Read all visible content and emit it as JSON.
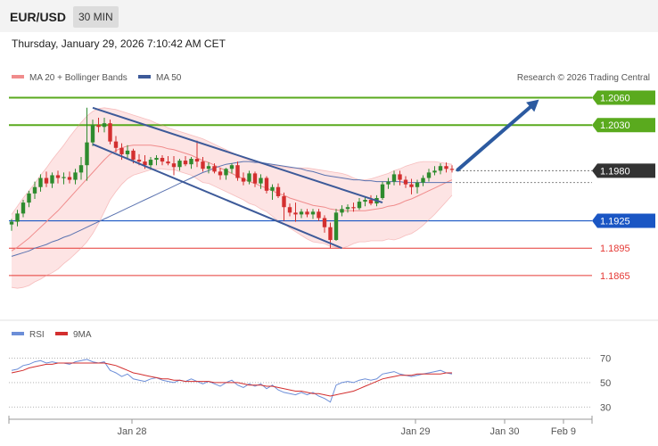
{
  "header": {
    "symbol": "EUR/USD",
    "timeframe": "30 MIN",
    "datetime": "Thursday, January 29, 2026 7:10:42 AM CET"
  },
  "legend": {
    "ma20_bb": "MA 20 + Bollinger Bands",
    "ma50": "MA 50",
    "credit": "Research © 2026 Trading Central",
    "rsi": "RSI",
    "rsi_ma": "9MA"
  },
  "colors": {
    "resistance": "#5aaa1e",
    "support": "#1a56c4",
    "target": "#e53935",
    "current": "#333333",
    "bull": "#2e8b2e",
    "bear": "#d32f2f",
    "channel": "#3d5a99",
    "arrow": "#2c5aa0",
    "rsi": "#6c8ed8",
    "rsi_ma": "#d32f2f"
  },
  "chart_data": [
    {
      "type": "candlestick",
      "ylim": [
        1.1815,
        1.2085
      ],
      "x_ticks": [
        "Jan 28",
        "Jan 29",
        "Jan 30",
        "Feb 9"
      ],
      "levels": [
        {
          "value": 1.206,
          "label": "1.2060",
          "kind": "resistance"
        },
        {
          "value": 1.203,
          "label": "1.2030",
          "kind": "resistance"
        },
        {
          "value": 1.198,
          "label": "1.1980",
          "kind": "current"
        },
        {
          "value": 1.1925,
          "label": "1.1925",
          "kind": "support"
        },
        {
          "value": 1.1895,
          "label": "1.1895",
          "kind": "target"
        },
        {
          "value": 1.1865,
          "label": "1.1865",
          "kind": "target"
        }
      ],
      "ohlc": [
        [
          1.1921,
          1.1927,
          1.1914,
          1.1924
        ],
        [
          1.1924,
          1.1937,
          1.1919,
          1.1933
        ],
        [
          1.1933,
          1.1948,
          1.1929,
          1.1945
        ],
        [
          1.1945,
          1.1958,
          1.194,
          1.1955
        ],
        [
          1.1955,
          1.1968,
          1.1949,
          1.1962
        ],
        [
          1.1962,
          1.1976,
          1.1957,
          1.1972
        ],
        [
          1.1972,
          1.1979,
          1.1962,
          1.1966
        ],
        [
          1.1966,
          1.1978,
          1.1961,
          1.1975
        ],
        [
          1.1975,
          1.198,
          1.1966,
          1.1972
        ],
        [
          1.1972,
          1.1978,
          1.1965,
          1.1973
        ],
        [
          1.1973,
          1.1979,
          1.1966,
          1.197
        ],
        [
          1.197,
          1.1982,
          1.1965,
          1.1978
        ],
        [
          1.1978,
          1.1995,
          1.197,
          1.1986
        ],
        [
          1.1986,
          1.2049,
          1.1969,
          1.2011
        ],
        [
          1.2011,
          1.2036,
          1.2007,
          1.203
        ],
        [
          1.203,
          1.2038,
          1.2022,
          1.2028
        ],
        [
          1.2028,
          1.2038,
          1.2022,
          1.2032
        ],
        [
          1.2032,
          1.2036,
          1.2009,
          1.2012
        ],
        [
          1.2012,
          1.2018,
          1.2,
          1.2005
        ],
        [
          1.2005,
          1.201,
          1.1992,
          1.1998
        ],
        [
          1.1998,
          1.2008,
          1.1993,
          1.2002
        ],
        [
          1.2002,
          1.2004,
          1.1988,
          1.1992
        ],
        [
          1.1992,
          1.1998,
          1.1986,
          1.199
        ],
        [
          1.199,
          1.1997,
          1.1982,
          1.1986
        ],
        [
          1.1986,
          1.1995,
          1.1981,
          1.1992
        ],
        [
          1.1992,
          1.1997,
          1.1986,
          1.1994
        ],
        [
          1.1994,
          1.1997,
          1.1986,
          1.199
        ],
        [
          1.199,
          1.1996,
          1.1986,
          1.1988
        ],
        [
          1.1988,
          1.1996,
          1.1975,
          1.1984
        ],
        [
          1.1984,
          1.1993,
          1.198,
          1.1991
        ],
        [
          1.1991,
          1.1996,
          1.1985,
          1.1987
        ],
        [
          1.1987,
          1.1995,
          1.1982,
          1.1993
        ],
        [
          1.1993,
          1.2013,
          1.1984,
          1.199
        ],
        [
          1.199,
          1.1995,
          1.1979,
          1.1982
        ],
        [
          1.1982,
          1.1989,
          1.1977,
          1.1985
        ],
        [
          1.1985,
          1.1988,
          1.1977,
          1.1979
        ],
        [
          1.1979,
          1.1983,
          1.197,
          1.1975
        ],
        [
          1.1975,
          1.1983,
          1.197,
          1.1982
        ],
        [
          1.1982,
          1.1988,
          1.1977,
          1.1986
        ],
        [
          1.1986,
          1.199,
          1.1969,
          1.1972
        ],
        [
          1.1972,
          1.1978,
          1.1964,
          1.1968
        ],
        [
          1.1968,
          1.198,
          1.1965,
          1.1977
        ],
        [
          1.1977,
          1.1979,
          1.1962,
          1.1966
        ],
        [
          1.1966,
          1.1976,
          1.196,
          1.1972
        ],
        [
          1.1972,
          1.1974,
          1.1955,
          1.1958
        ],
        [
          1.1958,
          1.1965,
          1.1948,
          1.1962
        ],
        [
          1.1962,
          1.1966,
          1.195,
          1.1952
        ],
        [
          1.1952,
          1.1956,
          1.1925,
          1.194
        ],
        [
          1.194,
          1.1944,
          1.193,
          1.1934
        ],
        [
          1.1934,
          1.1945,
          1.1924,
          1.1932
        ],
        [
          1.1932,
          1.1938,
          1.1928,
          1.1935
        ],
        [
          1.1935,
          1.1938,
          1.1929,
          1.1932
        ],
        [
          1.1932,
          1.1938,
          1.1927,
          1.1935
        ],
        [
          1.1935,
          1.1938,
          1.1925,
          1.1928
        ],
        [
          1.1928,
          1.1931,
          1.1912,
          1.1918
        ],
        [
          1.1918,
          1.1923,
          1.1895,
          1.1904
        ],
        [
          1.1904,
          1.1938,
          1.1903,
          1.1934
        ],
        [
          1.1934,
          1.1942,
          1.193,
          1.1938
        ],
        [
          1.1938,
          1.1943,
          1.1934,
          1.194
        ],
        [
          1.194,
          1.1945,
          1.1935,
          1.1939
        ],
        [
          1.1939,
          1.195,
          1.1937,
          1.1946
        ],
        [
          1.1946,
          1.1952,
          1.1941,
          1.1948
        ],
        [
          1.1948,
          1.1953,
          1.1942,
          1.1944
        ],
        [
          1.1944,
          1.1953,
          1.1941,
          1.195
        ],
        [
          1.195,
          1.1968,
          1.1948,
          1.1965
        ],
        [
          1.1965,
          1.1972,
          1.196,
          1.1968
        ],
        [
          1.1968,
          1.198,
          1.1964,
          1.1976
        ],
        [
          1.1976,
          1.198,
          1.1964,
          1.197
        ],
        [
          1.197,
          1.1974,
          1.1961,
          1.1965
        ],
        [
          1.1965,
          1.1971,
          1.1954,
          1.1962
        ],
        [
          1.1962,
          1.197,
          1.1955,
          1.1967
        ],
        [
          1.1967,
          1.1975,
          1.1963,
          1.1972
        ],
        [
          1.1972,
          1.1982,
          1.1968,
          1.1978
        ],
        [
          1.1978,
          1.1985,
          1.1975,
          1.198
        ],
        [
          1.198,
          1.1988,
          1.1976,
          1.1985
        ],
        [
          1.1985,
          1.1989,
          1.1978,
          1.1982
        ],
        [
          1.1982,
          1.1986,
          1.1978,
          1.1981
        ]
      ],
      "ma50": [
        1.1886,
        1.1888,
        1.189,
        1.1892,
        1.1895,
        1.1897,
        1.1899,
        1.1902,
        1.1904,
        1.1907,
        1.1909,
        1.1912,
        1.1915,
        1.1918,
        1.1921,
        1.1924,
        1.1927,
        1.193,
        1.1933,
        1.1936,
        1.1939,
        1.1942,
        1.1945,
        1.1948,
        1.1951,
        1.1954,
        1.1957,
        1.196,
        1.1963,
        1.1966,
        1.1969,
        1.1972,
        1.1975,
        1.1978,
        1.198,
        1.1983,
        1.1985,
        1.1987,
        1.1988,
        1.1989,
        1.199,
        1.199,
        1.1989,
        1.1989,
        1.1988,
        1.1987,
        1.1986,
        1.1985,
        1.1984,
        1.1983,
        1.1982,
        1.198,
        1.1979,
        1.1977,
        1.1975,
        1.1974,
        1.1973,
        1.1972,
        1.1971,
        1.197,
        1.197,
        1.1969,
        1.1969,
        1.1968,
        1.1968,
        1.1968,
        1.1968,
        1.1968,
        1.1967,
        1.1967,
        1.1967,
        1.1967,
        1.1967,
        1.1967,
        1.1967,
        1.1967,
        1.1967
      ],
      "ma20": [
        1.1892,
        1.1896,
        1.1901,
        1.1906,
        1.1912,
        1.1918,
        1.1924,
        1.193,
        1.1936,
        1.1943,
        1.195,
        1.1957,
        1.1964,
        1.1971,
        1.1978,
        1.1985,
        1.1992,
        1.1998,
        1.2002,
        1.2005,
        1.2007,
        1.2008,
        1.2008,
        1.2008,
        1.2008,
        1.2007,
        1.2006,
        1.2004,
        1.2003,
        1.2001,
        1.1999,
        1.1997,
        1.1994,
        1.1991,
        1.1989,
        1.1986,
        1.1983,
        1.198,
        1.1977,
        1.1974,
        1.1971,
        1.1968,
        1.1966,
        1.1963,
        1.1961,
        1.1958,
        1.1955,
        1.1953,
        1.195,
        1.1948,
        1.1946,
        1.1944,
        1.1942,
        1.1941,
        1.194,
        1.1938,
        1.1937,
        1.1936,
        1.1936,
        1.1936,
        1.1936,
        1.1936,
        1.1937,
        1.1938,
        1.1939,
        1.1941,
        1.1942,
        1.1944,
        1.1947,
        1.1949,
        1.1952,
        1.1955,
        1.1958,
        1.1961,
        1.1964,
        1.1967,
        1.197
      ],
      "bb_upper": [
        1.1932,
        1.1941,
        1.195,
        1.1958,
        1.1966,
        1.1975,
        1.1983,
        1.1992,
        1.2,
        1.2008,
        1.2017,
        1.2025,
        1.2033,
        1.204,
        1.2045,
        1.2048,
        1.2049,
        1.2048,
        1.2047,
        1.2045,
        1.2043,
        1.2041,
        1.2039,
        1.2037,
        1.2035,
        1.2032,
        1.203,
        1.2027,
        1.2025,
        1.2023,
        1.2021,
        1.2019,
        1.2017,
        1.2015,
        1.2012,
        1.2009,
        1.2006,
        1.2003,
        1.2,
        1.1997,
        1.1994,
        1.1992,
        1.199,
        1.1988,
        1.1987,
        1.1986,
        1.1985,
        1.1984,
        1.1983,
        1.1983,
        1.1983,
        1.1983,
        1.1982,
        1.1981,
        1.198,
        1.1979,
        1.1978,
        1.1977,
        1.1975,
        1.1972,
        1.197,
        1.197,
        1.1971,
        1.1973,
        1.1975,
        1.1977,
        1.198,
        1.1982,
        1.1985,
        1.1987,
        1.1989,
        1.199,
        1.199,
        1.199,
        1.1989,
        1.1988,
        1.1987
      ],
      "bb_lower": [
        1.1852,
        1.1851,
        1.1852,
        1.1854,
        1.1858,
        1.1861,
        1.1865,
        1.1868,
        1.1872,
        1.1878,
        1.1883,
        1.1889,
        1.1895,
        1.1902,
        1.1911,
        1.1922,
        1.1935,
        1.1948,
        1.1957,
        1.1965,
        1.1971,
        1.1975,
        1.1977,
        1.1979,
        1.1981,
        1.1982,
        1.1982,
        1.1981,
        1.1981,
        1.1979,
        1.1977,
        1.1975,
        1.1971,
        1.1967,
        1.1966,
        1.1963,
        1.196,
        1.1957,
        1.1954,
        1.1951,
        1.1948,
        1.1944,
        1.1942,
        1.1938,
        1.1935,
        1.193,
        1.1925,
        1.1922,
        1.1917,
        1.1913,
        1.1909,
        1.1905,
        1.1902,
        1.1901,
        1.19,
        1.1897,
        1.1896,
        1.1895,
        1.1897,
        1.19,
        1.1902,
        1.1902,
        1.1903,
        1.1903,
        1.1903,
        1.1905,
        1.1904,
        1.1906,
        1.1909,
        1.1911,
        1.1915,
        1.192,
        1.1926,
        1.1932,
        1.1939,
        1.1946,
        1.1953
      ],
      "channel_upper": [
        [
          14,
          1.2049
        ],
        [
          64,
          1.1945
        ]
      ],
      "channel_lower": [
        [
          14,
          1.2009
        ],
        [
          57,
          1.1895
        ]
      ],
      "projection_arrow": [
        [
          77,
          1.1981
        ],
        [
          91,
          1.2058
        ]
      ]
    },
    {
      "type": "line",
      "name": "RSI",
      "ylim": [
        20,
        85
      ],
      "y_ticks": [
        70,
        50,
        30
      ],
      "series": [
        {
          "name": "RSI",
          "values": [
            60,
            61,
            64,
            65,
            67,
            68,
            66,
            67,
            66,
            66,
            65,
            67,
            68,
            69,
            67,
            66,
            67,
            60,
            58,
            55,
            57,
            53,
            52,
            51,
            53,
            54,
            52,
            51,
            50,
            52,
            51,
            53,
            51,
            49,
            51,
            49,
            47,
            50,
            52,
            48,
            46,
            49,
            47,
            49,
            45,
            48,
            44,
            42,
            41,
            40,
            42,
            40,
            42,
            39,
            37,
            34,
            48,
            50,
            51,
            50,
            52,
            53,
            52,
            53,
            57,
            58,
            59,
            57,
            56,
            55,
            56,
            57,
            58,
            59,
            60,
            58,
            57
          ]
        },
        {
          "name": "9MA",
          "values": [
            58,
            59,
            60,
            62,
            63,
            64,
            65,
            65,
            66,
            66,
            66,
            66,
            66,
            66,
            66,
            66,
            66,
            65,
            64,
            62,
            60,
            58,
            57,
            56,
            55,
            54,
            53,
            53,
            52,
            52,
            51,
            51,
            51,
            51,
            51,
            50,
            50,
            50,
            50,
            50,
            49,
            48,
            48,
            48,
            47,
            47,
            46,
            45,
            44,
            43,
            43,
            42,
            41,
            41,
            40,
            39,
            40,
            41,
            42,
            43,
            45,
            47,
            49,
            51,
            53,
            54,
            55,
            56,
            56,
            56,
            57,
            57,
            57,
            57,
            57,
            58,
            58
          ]
        }
      ]
    }
  ]
}
